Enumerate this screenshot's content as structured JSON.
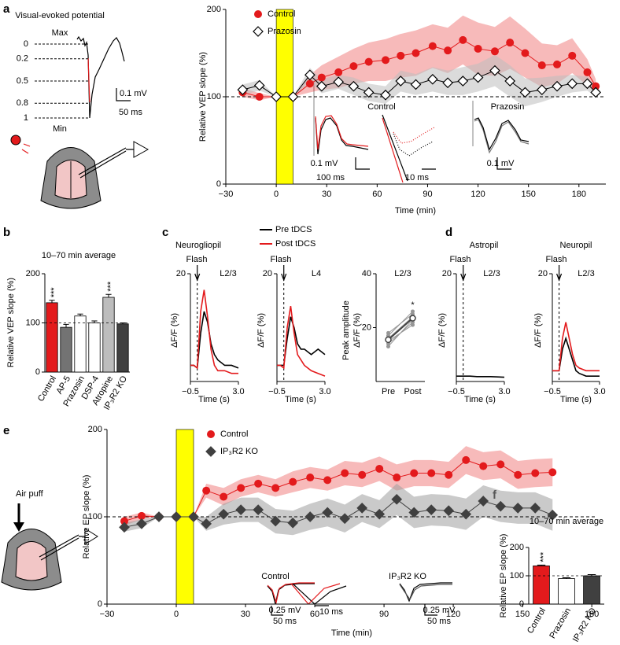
{
  "panel_labels": [
    "a",
    "b",
    "c",
    "d",
    "e",
    "f"
  ],
  "schematic_a": {
    "title": "Visual-evoked potential",
    "max": "Max",
    "min": "Min",
    "levels": [
      0,
      0.2,
      0.5,
      0.8,
      1
    ],
    "scale_v": "0.1 mV",
    "scale_t": "50 ms"
  },
  "schematic_e": {
    "label": "Air puff"
  },
  "chart_data": [
    {
      "type": "line",
      "y_label": "Relative VEP slope (%)",
      "x_label": "Time (min)",
      "x": [
        -20,
        -10,
        0,
        10,
        20,
        27,
        37,
        46,
        55,
        65,
        74,
        83,
        93,
        102,
        111,
        120,
        130,
        139,
        148,
        158,
        167,
        176,
        185,
        190
      ],
      "xlim": [
        -30,
        196
      ],
      "xticks": [
        {
          "value": -30,
          "label": "−30"
        },
        0,
        30,
        60,
        90,
        120,
        150,
        180
      ],
      "ylim": [
        0,
        200
      ],
      "yticks": [
        0,
        100,
        200
      ],
      "highlight": [
        0,
        10
      ],
      "highlight_color": "#ffff00",
      "reference": 100,
      "series": [
        {
          "name": "Control",
          "color": "#e31a1c",
          "marker": "circle",
          "values": [
            105,
            100,
            100,
            100,
            115,
            122,
            128,
            135,
            140,
            142,
            147,
            150,
            158,
            153,
            165,
            155,
            152,
            162,
            150,
            136,
            137,
            147,
            128,
            112
          ],
          "errors": [
            5,
            4,
            0,
            0,
            10,
            14,
            18,
            20,
            22,
            24,
            25,
            26,
            25,
            26,
            28,
            30,
            28,
            30,
            28,
            25,
            22,
            20,
            15,
            8
          ]
        },
        {
          "name": "Prazosin",
          "color": "#000000",
          "marker": "diamond",
          "marker_fill": "#ffffff",
          "band_color": "#bdbdbd",
          "values": [
            108,
            113,
            100,
            100,
            125,
            112,
            117,
            112,
            105,
            102,
            118,
            114,
            120,
            116,
            118,
            122,
            130,
            118,
            105,
            108,
            112,
            115,
            115,
            105
          ],
          "errors": [
            6,
            6,
            0,
            0,
            8,
            8,
            8,
            10,
            10,
            10,
            12,
            12,
            14,
            14,
            16,
            16,
            18,
            18,
            16,
            14,
            12,
            10,
            8,
            5
          ]
        }
      ],
      "annotations": [
        "Control",
        "Prazosin",
        "0.1 mV",
        "100 ms",
        "10 ms",
        "0.1 mV"
      ]
    },
    {
      "type": "bar",
      "title": "10–70 min average",
      "y_label": "Relative VEP slope (%)",
      "categories": [
        "Control",
        "AP-5",
        "Prazosin",
        "DSP-4",
        "Atropine",
        "IP₃R2 KO"
      ],
      "values": [
        141,
        91,
        114,
        100,
        152,
        98
      ],
      "errors": [
        5,
        6,
        4,
        4,
        6,
        2
      ],
      "colors": [
        "#e31a1c",
        "#737373",
        "#ffffff",
        "#ffffff",
        "#bdbdbd",
        "#404040"
      ],
      "ylim": [
        0,
        200
      ],
      "yticks": [
        0,
        100,
        200
      ],
      "reference": 100,
      "significance": [
        "***",
        null,
        null,
        null,
        "***",
        null
      ]
    },
    {
      "type": "trace",
      "title": "Neurogliopil",
      "event": "Flash",
      "event_x": 0,
      "layer": "L2/3",
      "x_label": "Time (s)",
      "y_label": "ΔF/F (%)",
      "x": [
        -0.5,
        -0.25,
        0,
        0.25,
        0.5,
        0.75,
        1,
        1.25,
        1.5,
        2,
        2.5,
        3
      ],
      "xlim": [
        -0.5,
        3
      ],
      "xticks": [
        {
          "value": -0.5,
          "label": "−0.5"
        },
        {
          "value": 3,
          "label": "3.0"
        }
      ],
      "ylim": [
        0,
        20
      ],
      "yticks": [
        20
      ],
      "series": [
        {
          "name": "Pre tDCS",
          "color": "#000000",
          "values": [
            3,
            3,
            2.5,
            9,
            13,
            11,
            7,
            5,
            4,
            3,
            3,
            2.5
          ]
        },
        {
          "name": "Post tDCS",
          "color": "#e31a1c",
          "values": [
            3,
            3,
            2.5,
            13,
            17,
            12,
            6,
            3,
            2,
            2,
            1.5,
            1.5
          ]
        }
      ]
    },
    {
      "type": "trace",
      "event": "Flash",
      "event_x": 0,
      "layer": "L4",
      "x_label": "Time (s)",
      "y_label": "ΔF/F (%)",
      "x": [
        -0.5,
        -0.25,
        0,
        0.25,
        0.5,
        0.75,
        1,
        1.25,
        1.5,
        2,
        2.5,
        3
      ],
      "xlim": [
        -0.5,
        3
      ],
      "xticks": [
        {
          "value": -0.5,
          "label": "−0.5"
        },
        {
          "value": 3,
          "label": "3.0"
        }
      ],
      "ylim": [
        0,
        20
      ],
      "yticks": [
        20
      ],
      "series": [
        {
          "color": "#000000",
          "values": [
            3,
            3,
            3,
            8,
            12,
            10,
            7,
            6,
            6,
            5,
            6,
            5
          ]
        },
        {
          "color": "#e31a1c",
          "values": [
            3,
            3,
            2.5,
            10,
            14,
            9,
            5,
            4,
            3,
            2,
            1.5,
            1
          ]
        }
      ]
    },
    {
      "type": "paired",
      "layer": "L2/3",
      "y_label": [
        "Peak amplitude",
        "ΔF/F (%)"
      ],
      "categories": [
        "Pre",
        "Post"
      ],
      "ylim": [
        0,
        40
      ],
      "yticks": [
        20,
        40
      ],
      "subject_color": "#969696",
      "subjects": [
        [
          14,
          22
        ],
        [
          16,
          24
        ],
        [
          17,
          26
        ],
        [
          15,
          21
        ],
        [
          18,
          25
        ],
        [
          13,
          23
        ]
      ],
      "mean": [
        15.5,
        23.5
      ],
      "mean_color": "#404040",
      "significance": "*"
    },
    {
      "type": "trace",
      "title": "Astropil",
      "event": "Flash",
      "event_x": 0,
      "layer": "L2/3",
      "x_label": "Time (s)",
      "y_label": "ΔF/F (%)",
      "x": [
        -0.5,
        0,
        0.5,
        1,
        2,
        3
      ],
      "xlim": [
        -0.5,
        3
      ],
      "xticks": [
        {
          "value": -0.5,
          "label": "−0.5"
        },
        {
          "value": 3,
          "label": "3.0"
        }
      ],
      "ylim": [
        0,
        20
      ],
      "yticks": [
        20
      ],
      "series": [
        {
          "color": "#000000",
          "values": [
            1,
            1,
            1,
            0.9,
            0.9,
            0.8
          ]
        }
      ]
    },
    {
      "type": "trace",
      "title": "Neuropil",
      "event": "Flash",
      "event_x": 0,
      "layer": "L2/3",
      "x_label": "Time (s)",
      "y_label": "ΔF/F (%)",
      "x": [
        -0.5,
        -0.25,
        0,
        0.25,
        0.5,
        0.75,
        1,
        1.25,
        1.5,
        2,
        2.5,
        3
      ],
      "xlim": [
        -0.5,
        3
      ],
      "xticks": [
        {
          "value": -0.5,
          "label": "−0.5"
        },
        {
          "value": 3,
          "label": "3.0"
        }
      ],
      "ylim": [
        0,
        20
      ],
      "yticks": [
        20
      ],
      "series": [
        {
          "color": "#000000",
          "values": [
            2,
            2,
            2,
            6,
            8,
            6,
            4,
            2,
            1.5,
            1,
            1,
            1
          ]
        },
        {
          "color": "#e31a1c",
          "values": [
            2,
            2,
            2,
            8,
            11,
            8,
            5,
            3,
            2.5,
            2,
            2,
            2
          ]
        }
      ]
    },
    {
      "type": "line",
      "y_label": "Relative EP slope (%)",
      "x_label": "Time (min)",
      "x": [
        -22.5,
        -15,
        -7.5,
        0,
        7.5,
        13,
        20.5,
        28,
        35.5,
        43,
        50.5,
        58,
        65.5,
        73,
        80.5,
        88,
        95.5,
        103,
        110.5,
        118,
        125.5,
        133,
        140.5,
        148,
        155.5,
        163
      ],
      "xlim": [
        -30,
        182
      ],
      "xticks": [
        {
          "value": -30,
          "label": "−30"
        },
        0,
        30,
        60,
        90,
        120,
        150,
        180
      ],
      "ylim": [
        0,
        200
      ],
      "yticks": [
        0,
        100,
        200
      ],
      "highlight": [
        0,
        7.5
      ],
      "highlight_color": "#ffff00",
      "reference": 100,
      "series": [
        {
          "name": "Control",
          "color": "#e31a1c",
          "marker": "circle",
          "values": [
            95,
            101,
            100,
            100,
            100,
            130,
            123,
            133,
            138,
            133,
            140,
            145,
            142,
            150,
            148,
            155,
            145,
            150,
            150,
            148,
            165,
            158,
            160,
            148,
            150,
            151
          ],
          "errors": [
            5,
            4,
            0,
            0,
            0,
            8,
            10,
            10,
            10,
            10,
            12,
            12,
            12,
            14,
            14,
            14,
            15,
            15,
            15,
            15,
            16,
            16,
            16,
            16,
            16,
            16
          ]
        },
        {
          "name": "IP₃R2 KO",
          "color": "#404040",
          "marker": "diamond",
          "band_color": "#9e9e9e",
          "values": [
            88,
            92,
            100,
            100,
            100,
            92,
            103,
            108,
            108,
            95,
            93,
            100,
            105,
            98,
            110,
            103,
            120,
            105,
            108,
            107,
            103,
            118,
            112,
            110,
            110,
            102
          ],
          "errors": [
            5,
            5,
            0,
            0,
            0,
            8,
            12,
            14,
            14,
            14,
            14,
            15,
            16,
            16,
            16,
            16,
            18,
            18,
            18,
            18,
            18,
            18,
            18,
            18,
            18,
            18
          ]
        }
      ],
      "annotations": [
        "Control",
        "IP₃R2 KO",
        "0.25 mV",
        "50 ms",
        "10 ms",
        "0.25 mV",
        "50 ms"
      ]
    },
    {
      "type": "bar",
      "title": "10–70 min average",
      "y_label": "Relative EP slope (%)",
      "categories": [
        "Control",
        "Prazosin",
        "IP₃R2 KO"
      ],
      "values": [
        135,
        90,
        100
      ],
      "errors": [
        3,
        3,
        4
      ],
      "colors": [
        "#e31a1c",
        "#ffffff",
        "#404040"
      ],
      "ylim": [
        0,
        200
      ],
      "yticks": [
        0,
        100,
        200
      ],
      "reference": 100,
      "significance": [
        "***",
        null,
        null
      ]
    }
  ]
}
